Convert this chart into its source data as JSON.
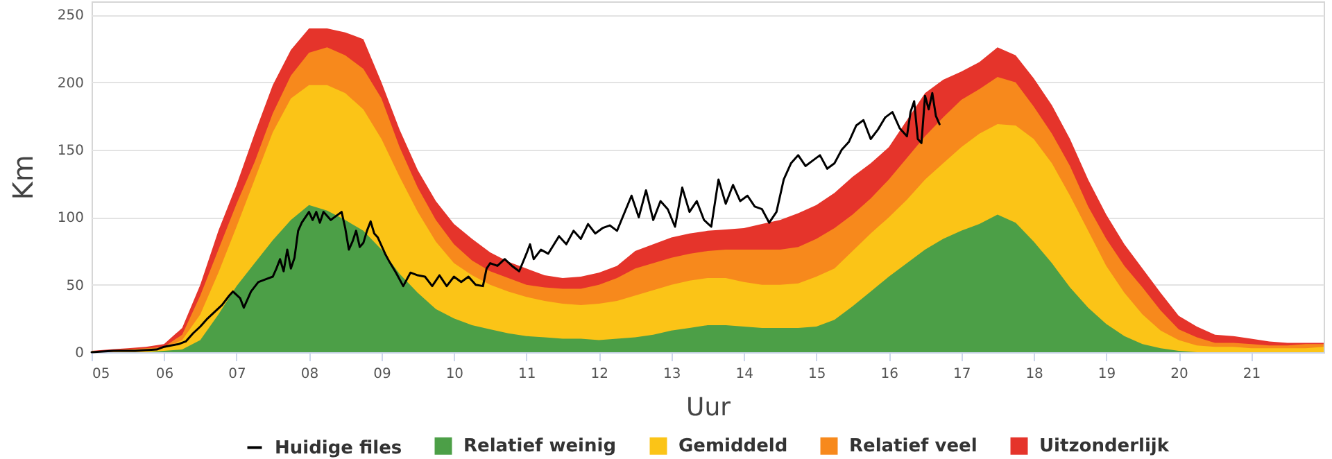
{
  "chart_data": {
    "type": "area",
    "xlabel": "Uur",
    "ylabel": "Km",
    "x": [
      5,
      5.25,
      5.5,
      5.75,
      6,
      6.25,
      6.5,
      6.75,
      7,
      7.25,
      7.5,
      7.75,
      8,
      8.25,
      8.5,
      8.75,
      9,
      9.25,
      9.5,
      9.75,
      10,
      10.25,
      10.5,
      10.75,
      11,
      11.25,
      11.5,
      11.75,
      12,
      12.25,
      12.5,
      12.75,
      13,
      13.25,
      13.5,
      13.75,
      14,
      14.25,
      14.5,
      14.75,
      15,
      15.25,
      15.5,
      15.75,
      16,
      16.25,
      16.5,
      16.75,
      17,
      17.25,
      17.5,
      17.75,
      18,
      18.25,
      18.5,
      18.75,
      19,
      19.25,
      19.5,
      19.75,
      20,
      20.25,
      20.5,
      20.75,
      21,
      21.25,
      21.5,
      21.75,
      22
    ],
    "xlim": [
      5,
      22
    ],
    "ylim": [
      0,
      260
    ],
    "xticks": [
      {
        "value": 5,
        "label": "05"
      },
      {
        "value": 6,
        "label": "06"
      },
      {
        "value": 7,
        "label": "07"
      },
      {
        "value": 8,
        "label": "08"
      },
      {
        "value": 9,
        "label": "09"
      },
      10,
      11,
      12,
      13,
      14,
      15,
      16,
      17,
      18,
      19,
      20,
      21
    ],
    "yticks": [
      0,
      50,
      100,
      150,
      200,
      250
    ],
    "grid": "y",
    "legend": "bottom",
    "series": [
      {
        "name": "Huidige files",
        "type": "line",
        "color": "#000000",
        "x": [
          5,
          5.3,
          5.6,
          5.9,
          6,
          6.2,
          6.3,
          6.4,
          6.5,
          6.6,
          6.7,
          6.8,
          6.9,
          6.95,
          7.05,
          7.1,
          7.2,
          7.3,
          7.4,
          7.5,
          7.55,
          7.6,
          7.65,
          7.7,
          7.75,
          7.8,
          7.85,
          7.9,
          7.95,
          8,
          8.05,
          8.1,
          8.15,
          8.2,
          8.3,
          8.35,
          8.45,
          8.5,
          8.55,
          8.6,
          8.65,
          8.7,
          8.75,
          8.8,
          8.85,
          8.9,
          8.95,
          9.05,
          9.1,
          9.2,
          9.3,
          9.4,
          9.5,
          9.6,
          9.7,
          9.8,
          9.9,
          10,
          10.1,
          10.2,
          10.3,
          10.4,
          10.45,
          10.5,
          10.6,
          10.7,
          10.8,
          10.9,
          11,
          11.05,
          11.1,
          11.2,
          11.3,
          11.45,
          11.55,
          11.65,
          11.75,
          11.85,
          11.95,
          12.05,
          12.15,
          12.25,
          12.35,
          12.45,
          12.55,
          12.65,
          12.75,
          12.85,
          12.95,
          13.05,
          13.15,
          13.25,
          13.35,
          13.45,
          13.55,
          13.65,
          13.75,
          13.85,
          13.95,
          14.05,
          14.15,
          14.25,
          14.35,
          14.45,
          14.55,
          14.65,
          14.75,
          14.85,
          14.95,
          15.05,
          15.15,
          15.25,
          15.35,
          15.45,
          15.55,
          15.65,
          15.75,
          15.85,
          15.95,
          16.05,
          16.15,
          16.25,
          16.3,
          16.35,
          16.4,
          16.45,
          16.5,
          16.55,
          16.6,
          16.65,
          16.7
        ],
        "values": [
          0,
          1,
          1,
          2,
          4,
          6,
          8,
          14,
          19,
          25,
          30,
          35,
          42,
          45,
          40,
          33,
          45,
          52,
          54,
          56,
          62,
          69,
          60,
          76,
          62,
          70,
          90,
          96,
          100,
          104,
          98,
          104,
          96,
          104,
          98,
          100,
          104,
          92,
          76,
          82,
          90,
          78,
          81,
          90,
          97,
          88,
          85,
          73,
          68,
          59,
          49,
          59,
          57,
          56,
          49,
          57,
          49,
          56,
          52,
          56,
          50,
          49,
          62,
          66,
          64,
          69,
          64,
          60,
          73,
          80,
          69,
          76,
          73,
          86,
          80,
          90,
          84,
          95,
          88,
          92,
          94,
          90,
          103,
          116,
          100,
          120,
          98,
          112,
          106,
          93,
          122,
          104,
          112,
          98,
          93,
          128,
          110,
          124,
          112,
          116,
          108,
          106,
          96,
          104,
          128,
          140,
          146,
          138,
          142,
          146,
          136,
          140,
          150,
          156,
          168,
          172,
          158,
          165,
          174,
          178,
          166,
          160,
          178,
          186,
          158,
          155,
          190,
          180,
          192,
          175,
          169
        ]
      },
      {
        "name": "Relatief weinig",
        "color": "#4c9f47",
        "values": [
          0,
          0,
          0,
          0,
          1,
          2,
          9,
          28,
          49,
          66,
          83,
          98,
          109,
          105,
          98,
          90,
          76,
          58,
          44,
          32,
          25,
          20,
          17,
          14,
          12,
          11,
          10,
          10,
          9,
          10,
          11,
          13,
          16,
          18,
          20,
          20,
          19,
          18,
          18,
          18,
          19,
          24,
          34,
          45,
          56,
          66,
          76,
          84,
          90,
          95,
          102,
          96,
          82,
          66,
          48,
          33,
          21,
          12,
          6,
          3,
          1,
          0,
          0,
          0,
          0,
          0,
          0,
          0,
          0
        ]
      },
      {
        "name": "Gemiddeld",
        "color": "#fbc417",
        "values": [
          0,
          0,
          1,
          2,
          3,
          9,
          28,
          59,
          93,
          128,
          163,
          188,
          198,
          198,
          192,
          180,
          158,
          130,
          104,
          82,
          66,
          57,
          50,
          45,
          41,
          38,
          36,
          35,
          36,
          38,
          42,
          46,
          50,
          53,
          55,
          55,
          52,
          50,
          50,
          51,
          56,
          62,
          75,
          88,
          100,
          113,
          128,
          140,
          152,
          162,
          169,
          168,
          158,
          140,
          116,
          90,
          64,
          44,
          28,
          16,
          9,
          5,
          4,
          4,
          3,
          3,
          3,
          3,
          4
        ]
      },
      {
        "name": "Relatief veel",
        "color": "#f7891c",
        "values": [
          1,
          1,
          2,
          3,
          4,
          13,
          42,
          76,
          110,
          141,
          177,
          205,
          222,
          226,
          220,
          210,
          188,
          152,
          122,
          98,
          80,
          68,
          60,
          55,
          50,
          48,
          47,
          47,
          50,
          55,
          62,
          66,
          70,
          73,
          75,
          76,
          76,
          76,
          76,
          78,
          84,
          92,
          102,
          114,
          128,
          144,
          160,
          174,
          187,
          195,
          204,
          200,
          182,
          162,
          138,
          108,
          84,
          64,
          48,
          31,
          17,
          11,
          7,
          7,
          6,
          5,
          5,
          6,
          6
        ]
      },
      {
        "name": "Uitzonderlijk",
        "color": "#e5342b",
        "values": [
          1,
          2,
          3,
          4,
          6,
          18,
          50,
          90,
          124,
          162,
          198,
          224,
          240,
          240,
          237,
          232,
          200,
          165,
          135,
          112,
          95,
          84,
          74,
          67,
          62,
          57,
          55,
          56,
          59,
          64,
          75,
          80,
          85,
          88,
          90,
          91,
          92,
          95,
          98,
          103,
          109,
          118,
          130,
          140,
          152,
          172,
          192,
          202,
          208,
          215,
          226,
          220,
          203,
          183,
          158,
          128,
          102,
          80,
          62,
          44,
          27,
          19,
          13,
          12,
          10,
          8,
          7,
          7,
          7
        ]
      }
    ]
  }
}
